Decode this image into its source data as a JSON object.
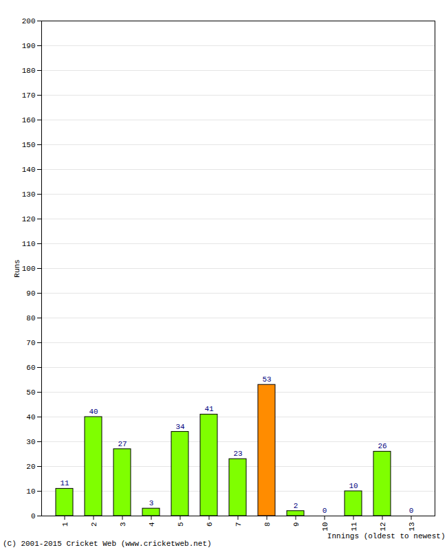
{
  "chart_data": {
    "type": "bar",
    "caption": "(C) 2001-2015 Cricket Web (www.cricketweb.net)",
    "x_label": "Innings (oldest to newest)",
    "y_label": "Runs",
    "categories": [
      "1",
      "2",
      "3",
      "4",
      "5",
      "6",
      "7",
      "8",
      "9",
      "10",
      "11",
      "12",
      "13"
    ],
    "values": [
      11,
      40,
      27,
      3,
      34,
      41,
      23,
      53,
      2,
      0,
      10,
      26,
      0
    ],
    "colors": [
      "#7fff00",
      "#7fff00",
      "#7fff00",
      "#7fff00",
      "#7fff00",
      "#7fff00",
      "#7fff00",
      "#ff8c00",
      "#7fff00",
      "#7fff00",
      "#7fff00",
      "#7fff00",
      "#7fff00"
    ],
    "ylim": [
      0,
      200
    ],
    "yticks": [
      0,
      10,
      20,
      30,
      40,
      50,
      60,
      70,
      80,
      90,
      100,
      110,
      120,
      130,
      140,
      150,
      160,
      170,
      180,
      190,
      200
    ],
    "grid": true,
    "data_labels": true
  }
}
